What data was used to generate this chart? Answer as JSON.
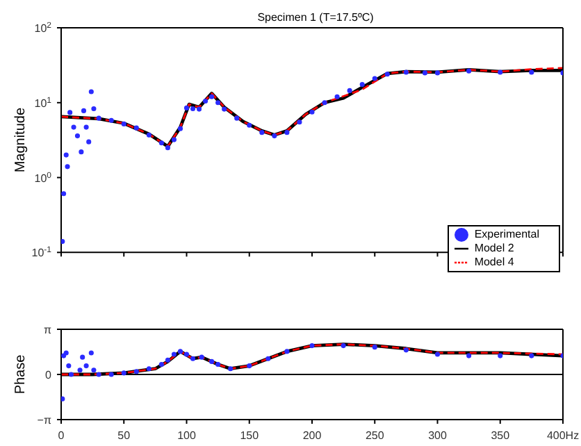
{
  "chart_data": [
    {
      "type": "line",
      "title": "Specimen 1   (T=17.5ºC)",
      "ylabel": "Magnitude",
      "log": "y",
      "xlim": [
        0,
        400
      ],
      "xticks": [
        0,
        50,
        100,
        150,
        200,
        250,
        300,
        350,
        400
      ],
      "ylim": [
        0.1,
        100
      ],
      "yticks": [
        {
          "value": 0.1,
          "label": "10$^{-1}$"
        },
        {
          "value": 1,
          "label": "10$^{0}$"
        },
        {
          "value": 10,
          "label": "10$^{1}$"
        },
        {
          "value": 100,
          "label": "10$^{2}$"
        }
      ],
      "tick_labels": "y",
      "legend": "bottom right",
      "grid": false,
      "series": [
        {
          "name": "Experimental",
          "type": "scatter",
          "marker": "circle",
          "color": "#2b2bff",
          "x": [
            1,
            2,
            4,
            5,
            7,
            10,
            13,
            16,
            18,
            20,
            22,
            24,
            26,
            30,
            40,
            50,
            60,
            70,
            80,
            85,
            90,
            95,
            100,
            105,
            110,
            115,
            120,
            125,
            130,
            140,
            150,
            160,
            170,
            180,
            190,
            200,
            210,
            220,
            230,
            240,
            250,
            260,
            275,
            290,
            300,
            325,
            350,
            375,
            400
          ],
          "values": [
            0.14,
            0.61,
            2.0,
            1.4,
            7.4,
            4.7,
            3.6,
            2.2,
            7.8,
            4.7,
            3.0,
            14,
            8.3,
            6.2,
            5.8,
            5.2,
            4.6,
            3.7,
            2.9,
            2.5,
            3.2,
            4.5,
            8.5,
            8.3,
            8.2,
            10.5,
            12,
            10,
            8.2,
            6.2,
            5,
            4,
            3.6,
            4,
            5.5,
            7.5,
            10,
            12,
            14.5,
            17.5,
            21,
            24,
            25.5,
            25,
            25,
            26.5,
            25.5,
            25.5,
            25
          ]
        },
        {
          "name": "Model 2",
          "marker": "none",
          "line_style": "solid",
          "color": "#000000",
          "x": [
            0,
            15,
            30,
            50,
            70,
            85,
            95,
            102,
            110,
            120,
            130,
            145,
            160,
            170,
            180,
            195,
            210,
            225,
            240,
            260,
            275,
            300,
            325,
            350,
            375,
            400
          ],
          "values": [
            6.5,
            6.3,
            6.1,
            5.3,
            3.8,
            2.6,
            4.7,
            9.5,
            8.7,
            13.3,
            8.7,
            5.6,
            4.2,
            3.7,
            4.2,
            7,
            10,
            11.5,
            16,
            24.5,
            26,
            25.5,
            27.5,
            26,
            27,
            27
          ]
        },
        {
          "name": "Model 4",
          "marker": "none",
          "line_style": "dashed",
          "color": "#ff0000",
          "x": [
            0,
            15,
            30,
            50,
            70,
            85,
            95,
            102,
            110,
            120,
            130,
            145,
            160,
            170,
            180,
            195,
            210,
            225,
            240,
            260,
            275,
            300,
            325,
            350,
            375,
            400
          ],
          "values": [
            6.5,
            6.3,
            6.1,
            5.3,
            3.8,
            2.6,
            4.7,
            9.5,
            8.7,
            13.3,
            8.7,
            5.6,
            4.2,
            3.7,
            4.2,
            7,
            10,
            12.2,
            15,
            24.5,
            26,
            25.5,
            27.5,
            26,
            28,
            29
          ]
        }
      ]
    },
    {
      "type": "line",
      "ylabel": "Phase",
      "xlim": [
        0,
        400
      ],
      "xticks": [
        0,
        50,
        100,
        150,
        200,
        250,
        300,
        350,
        {
          "value": 400,
          "label": "400Hz"
        }
      ],
      "ylim": [
        -3.1416,
        3.1416
      ],
      "yticks": [
        {
          "value": -3.1416,
          "label": "−π"
        },
        0,
        {
          "value": 3.1416,
          "label": "π"
        }
      ],
      "grid": false,
      "ref_lines": [
        {
          "axis": "y",
          "value": 0,
          "color": "#000000"
        }
      ],
      "series": [
        {
          "type": "scatter",
          "marker": "circle",
          "color": "#2b2bff",
          "x": [
            1,
            2,
            4,
            6,
            8,
            15,
            17,
            20,
            24,
            26,
            30,
            40,
            50,
            60,
            70,
            80,
            85,
            90,
            95,
            100,
            105,
            112,
            120,
            125,
            135,
            150,
            165,
            180,
            200,
            225,
            250,
            275,
            300,
            325,
            350,
            375,
            400
          ],
          "values": [
            -1.7,
            1.3,
            1.5,
            0.6,
            0,
            0.3,
            1.2,
            0.6,
            1.5,
            0.3,
            0,
            0,
            0.1,
            0.2,
            0.4,
            0.7,
            1.0,
            1.4,
            1.6,
            1.4,
            1.1,
            1.2,
            0.9,
            0.7,
            0.4,
            0.6,
            1.1,
            1.6,
            2.0,
            2.0,
            1.9,
            1.7,
            1.4,
            1.3,
            1.3,
            1.3,
            1.3
          ]
        },
        {
          "marker": "none",
          "line_style": "solid",
          "color": "#000000",
          "x": [
            0,
            25,
            50,
            75,
            85,
            95,
            105,
            112,
            125,
            135,
            150,
            165,
            180,
            200,
            225,
            250,
            275,
            300,
            350,
            400
          ],
          "values": [
            0,
            0,
            0.1,
            0.4,
            0.9,
            1.6,
            1.1,
            1.2,
            0.7,
            0.4,
            0.6,
            1.1,
            1.6,
            2.0,
            2.1,
            2.0,
            1.8,
            1.5,
            1.5,
            1.3
          ]
        },
        {
          "marker": "none",
          "line_style": "dashed",
          "color": "#ff0000",
          "x": [
            0,
            25,
            50,
            75,
            85,
            95,
            105,
            112,
            125,
            135,
            150,
            165,
            180,
            200,
            225,
            250,
            275,
            300,
            350,
            400
          ],
          "values": [
            0,
            0,
            0.1,
            0.4,
            0.9,
            1.6,
            1.1,
            1.2,
            0.7,
            0.4,
            0.6,
            1.1,
            1.6,
            2.0,
            2.1,
            2.0,
            1.8,
            1.5,
            1.5,
            1.4
          ]
        }
      ]
    }
  ]
}
